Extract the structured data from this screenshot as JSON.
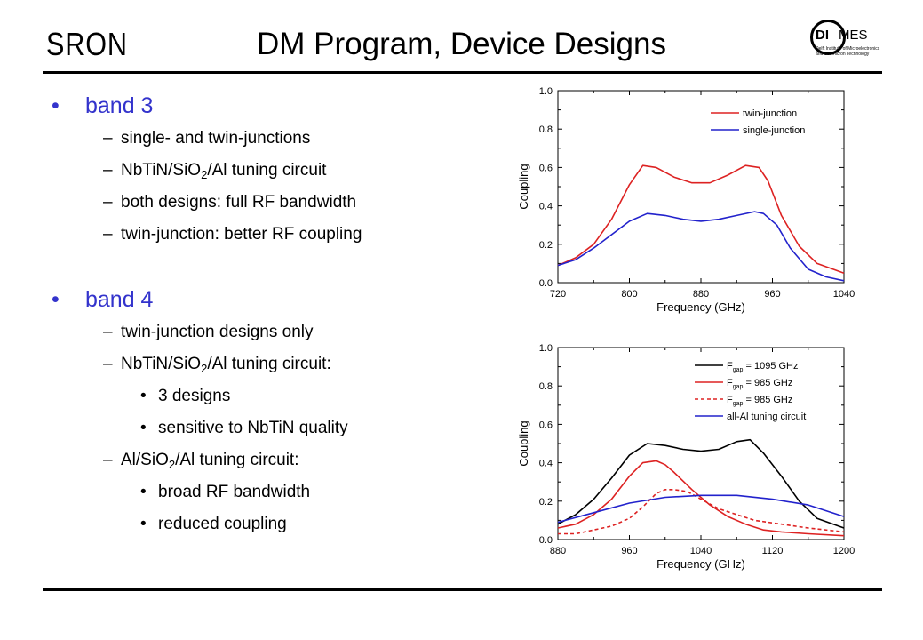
{
  "header": {
    "logo_left": "SRON",
    "title": "DM Program, Device Designs",
    "logo_right": {
      "main": "DIMES",
      "part1": "DI",
      "part2": "MES",
      "line1": "Delft Institute of Microelectronics",
      "line2": "and Submicron Technology"
    }
  },
  "content": {
    "band3": {
      "heading": "band 3",
      "items": [
        {
          "text": "single- and twin-junctions"
        },
        {
          "pre": "NbTiN/SiO",
          "sub": "2",
          "post": "/Al tuning circuit"
        },
        {
          "text": "both designs:  full RF bandwidth"
        },
        {
          "text": "twin-junction:  better RF coupling"
        }
      ]
    },
    "band4": {
      "heading": "band 4",
      "item1": "twin-junction designs only",
      "item2": {
        "pre": "NbTiN/SiO",
        "sub": "2",
        "post": "/Al tuning circuit:"
      },
      "item2_sub": [
        "3 designs",
        "sensitive to NbTiN quality"
      ],
      "item3": {
        "pre": "Al/SiO",
        "sub": "2",
        "post": "/Al tuning circuit:"
      },
      "item3_sub": [
        "broad RF bandwidth",
        "reduced coupling"
      ]
    }
  },
  "chart_data": [
    {
      "type": "line",
      "xlabel": "Frequency (GHz)",
      "ylabel": "Coupling",
      "xlim": [
        720,
        1040
      ],
      "ylim": [
        0.0,
        1.0
      ],
      "xticks": [
        "720",
        "800",
        "880",
        "960",
        "1040"
      ],
      "yticks": [
        "0.0",
        "0.2",
        "0.4",
        "0.6",
        "0.8",
        "1.0"
      ],
      "legend_position": "top-right",
      "series": [
        {
          "name": "twin-junction",
          "color": "#dd2222",
          "dash": false,
          "x": [
            720,
            740,
            760,
            780,
            800,
            815,
            830,
            850,
            870,
            890,
            910,
            930,
            945,
            955,
            970,
            990,
            1010,
            1040
          ],
          "y": [
            0.09,
            0.13,
            0.2,
            0.33,
            0.51,
            0.61,
            0.6,
            0.55,
            0.52,
            0.52,
            0.56,
            0.61,
            0.6,
            0.53,
            0.35,
            0.19,
            0.1,
            0.05
          ]
        },
        {
          "name": "single-junction",
          "color": "#2222cc",
          "dash": false,
          "x": [
            720,
            740,
            760,
            780,
            800,
            820,
            840,
            860,
            880,
            900,
            920,
            940,
            950,
            965,
            980,
            1000,
            1020,
            1040
          ],
          "y": [
            0.09,
            0.12,
            0.18,
            0.25,
            0.32,
            0.36,
            0.35,
            0.33,
            0.32,
            0.33,
            0.35,
            0.37,
            0.36,
            0.3,
            0.18,
            0.07,
            0.03,
            0.01
          ]
        }
      ]
    },
    {
      "type": "line",
      "xlabel": "Frequency (GHz)",
      "ylabel": "Coupling",
      "xlim": [
        880,
        1200
      ],
      "ylim": [
        0.0,
        1.0
      ],
      "xticks": [
        "880",
        "960",
        "1040",
        "1120",
        "1200"
      ],
      "yticks": [
        "0.0",
        "0.2",
        "0.4",
        "0.6",
        "0.8",
        "1.0"
      ],
      "legend_position": "top-right",
      "series": [
        {
          "name_main": "F",
          "name_sub": "gap",
          "name_rest": " = 1095 GHz",
          "color": "#000000",
          "dash": false,
          "x": [
            880,
            900,
            920,
            940,
            960,
            980,
            1000,
            1020,
            1040,
            1060,
            1080,
            1095,
            1110,
            1130,
            1150,
            1170,
            1200
          ],
          "y": [
            0.08,
            0.13,
            0.21,
            0.32,
            0.44,
            0.5,
            0.49,
            0.47,
            0.46,
            0.47,
            0.51,
            0.52,
            0.45,
            0.33,
            0.2,
            0.11,
            0.06
          ]
        },
        {
          "name_main": "F",
          "name_sub": "gap",
          "name_rest": " = 985 GHz",
          "color": "#dd2222",
          "dash": false,
          "x": [
            880,
            900,
            920,
            940,
            960,
            975,
            990,
            1000,
            1010,
            1030,
            1050,
            1070,
            1090,
            1110,
            1130,
            1160,
            1200
          ],
          "y": [
            0.06,
            0.08,
            0.13,
            0.21,
            0.33,
            0.4,
            0.41,
            0.39,
            0.35,
            0.26,
            0.18,
            0.12,
            0.08,
            0.05,
            0.04,
            0.03,
            0.02
          ]
        },
        {
          "name_main": "F",
          "name_sub": "gap",
          "name_rest": " = 985 GHz",
          "color": "#dd2222",
          "dash": true,
          "x": [
            880,
            900,
            920,
            940,
            960,
            975,
            990,
            1000,
            1010,
            1025,
            1040,
            1060,
            1080,
            1100,
            1130,
            1160,
            1200
          ],
          "y": [
            0.03,
            0.03,
            0.05,
            0.07,
            0.11,
            0.17,
            0.24,
            0.26,
            0.26,
            0.25,
            0.21,
            0.16,
            0.13,
            0.1,
            0.08,
            0.06,
            0.04
          ]
        },
        {
          "name": "all-Al tuning circuit",
          "color": "#2222cc",
          "dash": false,
          "x": [
            880,
            920,
            960,
            1000,
            1040,
            1080,
            1120,
            1160,
            1200
          ],
          "y": [
            0.09,
            0.14,
            0.19,
            0.22,
            0.23,
            0.23,
            0.21,
            0.18,
            0.12
          ]
        }
      ]
    }
  ]
}
